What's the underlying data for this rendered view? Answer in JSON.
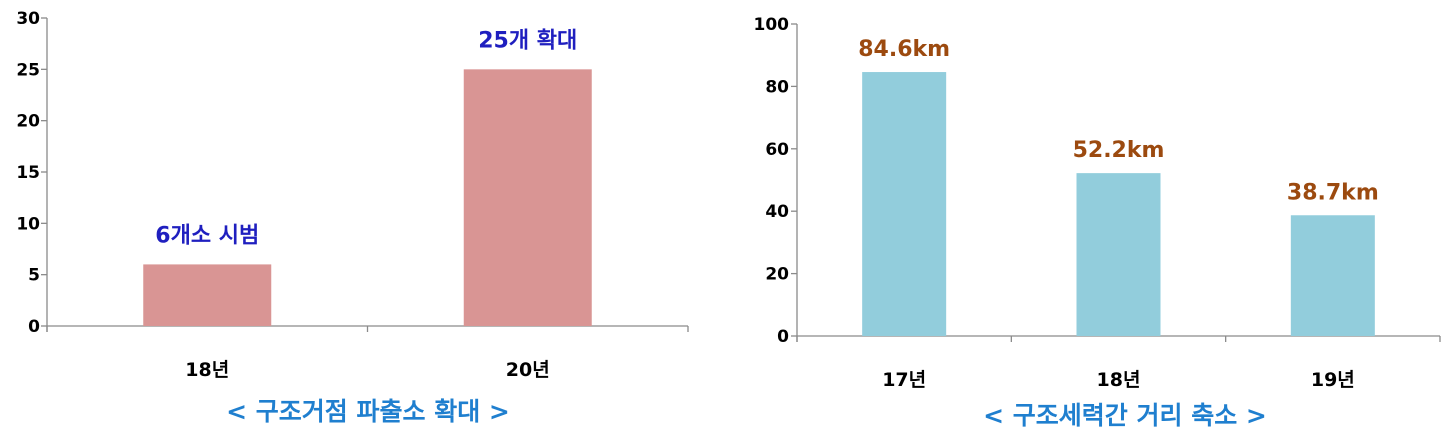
{
  "chart_data": [
    {
      "type": "bar",
      "title": "< 구조거점 파출소 확대 >",
      "categories": [
        "18년",
        "20년"
      ],
      "values": [
        6,
        25
      ],
      "data_labels": [
        "6개소 시범",
        "25개 확대"
      ],
      "ylim": [
        0,
        30
      ],
      "yticks": [
        0,
        5,
        10,
        15,
        20,
        25,
        30
      ],
      "grid": false,
      "colors": {
        "bar": "#d99594",
        "label": "#1f1fbf",
        "caption": "#1f7fcf"
      }
    },
    {
      "type": "bar",
      "title": "< 구조세력간 거리 축소 >",
      "categories": [
        "17년",
        "18년",
        "19년"
      ],
      "values": [
        84.6,
        52.2,
        38.7
      ],
      "data_labels": [
        "84.6km",
        "52.2km",
        "38.7km"
      ],
      "ylim": [
        0,
        100
      ],
      "yticks": [
        0,
        20,
        40,
        60,
        80,
        100
      ],
      "grid": false,
      "colors": {
        "bar": "#92cddc",
        "label": "#9c4a0f",
        "caption": "#1f7fcf"
      }
    }
  ]
}
